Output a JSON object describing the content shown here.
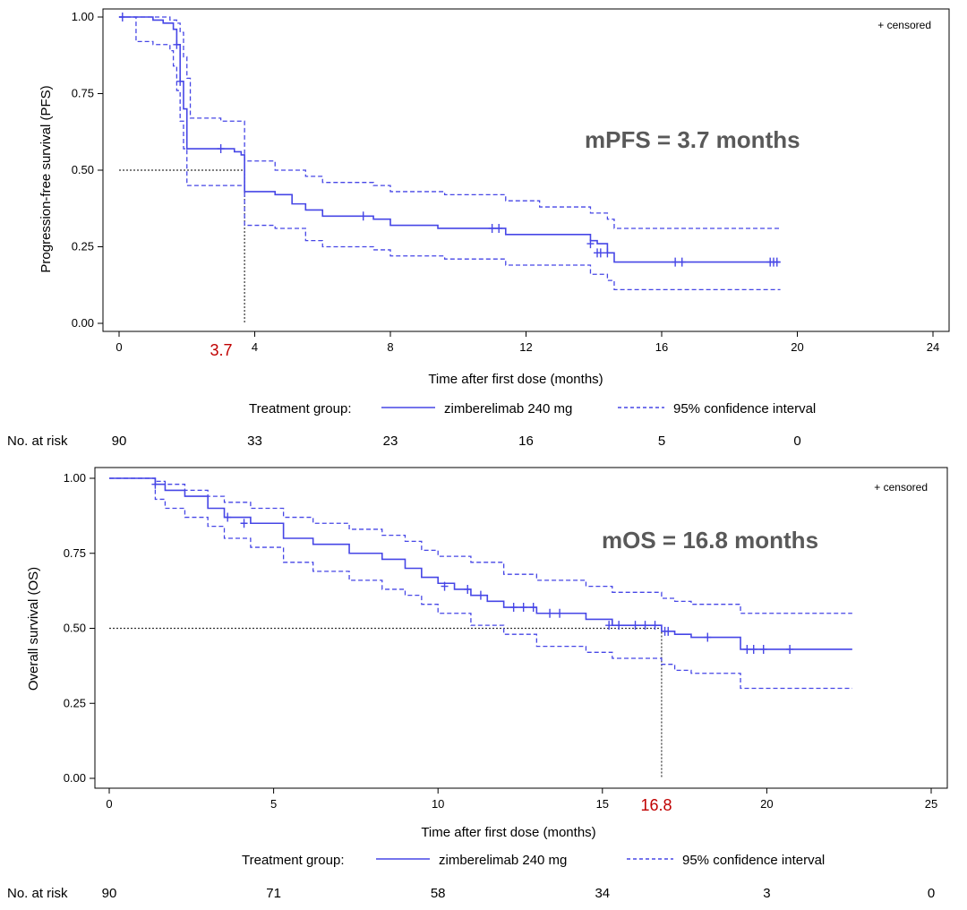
{
  "chart_data": [
    {
      "type": "line",
      "title": "",
      "xlabel": "Time after first dose (months)",
      "ylabel": "Progression-free survival (PFS)",
      "xlim": [
        0,
        24
      ],
      "ylim": [
        0,
        1
      ],
      "xticks": [
        "0",
        "4",
        "8",
        "12",
        "16",
        "20",
        "24"
      ],
      "yticks": [
        "0.00",
        "0.25",
        "0.50",
        "0.75",
        "1.00"
      ],
      "annotation": "mPFS = 3.7 months",
      "median_value": 3.7,
      "median_label": "3.7",
      "censored_note": "+ censored",
      "legend": {
        "prefix": "Treatment group:",
        "solid": "zimberelimab 240 mg",
        "dashed": "95% confidence interval"
      },
      "risk_label": "No. at risk",
      "risk_counts": [
        "90",
        "33",
        "23",
        "16",
        "5",
        "0"
      ],
      "risk_times": [
        0,
        4,
        8,
        12,
        16,
        20
      ],
      "series": [
        {
          "name": "zimberelimab 240 mg",
          "style": "solid",
          "x": [
            0,
            1.0,
            1.3,
            1.6,
            1.7,
            1.8,
            1.9,
            2.0,
            3.0,
            3.4,
            3.6,
            3.7,
            4.6,
            5.1,
            5.5,
            6.0,
            7.1,
            7.5,
            8.0,
            9.4,
            11.4,
            13.9,
            14.1,
            14.4,
            14.6,
            19.5
          ],
          "y": [
            1,
            0.99,
            0.98,
            0.96,
            0.91,
            0.79,
            0.7,
            0.57,
            0.57,
            0.56,
            0.55,
            0.43,
            0.42,
            0.39,
            0.37,
            0.35,
            0.35,
            0.34,
            0.32,
            0.31,
            0.29,
            0.27,
            0.26,
            0.23,
            0.2,
            0.2
          ],
          "censor_x": [
            0.1,
            1.7,
            1.8,
            3.0,
            7.2,
            11.0,
            11.2,
            13.9,
            14.1,
            14.2,
            14.4,
            16.4,
            16.6,
            19.2,
            19.3,
            19.4
          ],
          "censor_y": [
            1,
            0.91,
            0.79,
            0.57,
            0.35,
            0.31,
            0.31,
            0.26,
            0.23,
            0.23,
            0.23,
            0.2,
            0.2,
            0.2,
            0.2,
            0.2
          ]
        },
        {
          "name": "95% confidence interval upper",
          "style": "dashed",
          "x": [
            0,
            1.5,
            1.7,
            1.8,
            1.9,
            2.0,
            2.1,
            3.0,
            3.7,
            4.6,
            5.5,
            6.0,
            7.5,
            8.0,
            9.6,
            11.4,
            12.4,
            13.9,
            14.4,
            14.6,
            19.5
          ],
          "y": [
            1,
            0.99,
            0.98,
            0.95,
            0.87,
            0.8,
            0.67,
            0.66,
            0.53,
            0.5,
            0.48,
            0.46,
            0.45,
            0.43,
            0.42,
            0.4,
            0.38,
            0.36,
            0.34,
            0.31,
            0.31
          ]
        },
        {
          "name": "95% confidence interval lower",
          "style": "dashed",
          "x": [
            0,
            0.5,
            1.0,
            1.5,
            1.6,
            1.7,
            1.8,
            1.9,
            2.0,
            3.0,
            3.7,
            4.6,
            5.5,
            6.0,
            7.5,
            8.0,
            9.6,
            11.4,
            13.9,
            14.4,
            14.6,
            19.5
          ],
          "y": [
            1,
            0.92,
            0.91,
            0.89,
            0.84,
            0.76,
            0.66,
            0.57,
            0.45,
            0.45,
            0.32,
            0.31,
            0.27,
            0.25,
            0.24,
            0.22,
            0.21,
            0.19,
            0.16,
            0.14,
            0.11,
            0.11
          ]
        }
      ]
    },
    {
      "type": "line",
      "title": "",
      "xlabel": "Time after first dose (months)",
      "ylabel": "Overall survival (OS)",
      "xlim": [
        0,
        25
      ],
      "ylim": [
        0,
        1
      ],
      "xticks": [
        "0",
        "5",
        "10",
        "15",
        "20",
        "25"
      ],
      "yticks": [
        "0.00",
        "0.25",
        "0.50",
        "0.75",
        "1.00"
      ],
      "annotation": "mOS = 16.8 months",
      "median_value": 16.8,
      "median_label": "16.8",
      "censored_note": "+ censored",
      "legend": {
        "prefix": "Treatment group:",
        "solid": "zimberelimab 240 mg",
        "dashed": "95% confidence interval"
      },
      "risk_label": "No. at risk",
      "risk_counts": [
        "90",
        "71",
        "58",
        "34",
        "3",
        "0"
      ],
      "risk_times": [
        0,
        5,
        10,
        15,
        20,
        25
      ],
      "series": [
        {
          "name": "zimberelimab 240 mg",
          "style": "solid",
          "x": [
            0,
            1.4,
            1.7,
            2.3,
            3.0,
            3.5,
            4.3,
            5.3,
            6.2,
            7.3,
            8.3,
            9.0,
            9.5,
            10.0,
            10.5,
            11.0,
            11.5,
            12.0,
            13.0,
            14.5,
            15.3,
            16.8,
            17.2,
            17.7,
            19.2,
            22.6
          ],
          "y": [
            1,
            0.98,
            0.96,
            0.94,
            0.9,
            0.87,
            0.85,
            0.8,
            0.78,
            0.75,
            0.73,
            0.7,
            0.67,
            0.65,
            0.63,
            0.61,
            0.59,
            0.57,
            0.55,
            0.53,
            0.51,
            0.49,
            0.48,
            0.47,
            0.43,
            0.43
          ],
          "censor_x": [
            1.4,
            3.6,
            4.1,
            10.2,
            10.9,
            11.3,
            12.3,
            12.6,
            12.9,
            13.4,
            13.7,
            15.2,
            15.5,
            16.0,
            16.3,
            16.6,
            16.9,
            17.0,
            18.2,
            19.4,
            19.6,
            19.9,
            20.7
          ],
          "censor_y": [
            0.98,
            0.87,
            0.85,
            0.64,
            0.63,
            0.61,
            0.57,
            0.57,
            0.57,
            0.55,
            0.55,
            0.51,
            0.51,
            0.51,
            0.51,
            0.51,
            0.49,
            0.49,
            0.47,
            0.43,
            0.43,
            0.43,
            0.43
          ]
        },
        {
          "name": "95% confidence interval upper",
          "style": "dashed",
          "x": [
            0,
            1.4,
            1.7,
            2.3,
            3.0,
            3.5,
            4.3,
            5.3,
            6.2,
            7.3,
            8.3,
            9.0,
            9.5,
            10.0,
            11.0,
            12.0,
            13.0,
            14.5,
            15.3,
            16.8,
            17.2,
            17.7,
            19.2,
            22.6
          ],
          "y": [
            1,
            0.99,
            0.98,
            0.96,
            0.94,
            0.92,
            0.9,
            0.87,
            0.85,
            0.83,
            0.81,
            0.79,
            0.76,
            0.74,
            0.72,
            0.68,
            0.66,
            0.64,
            0.62,
            0.6,
            0.59,
            0.58,
            0.55,
            0.55
          ]
        },
        {
          "name": "95% confidence interval lower",
          "style": "dashed",
          "x": [
            0,
            1.4,
            1.7,
            2.3,
            3.0,
            3.5,
            4.3,
            5.3,
            6.2,
            7.3,
            8.3,
            9.0,
            9.5,
            10.0,
            11.0,
            12.0,
            13.0,
            14.5,
            15.3,
            16.8,
            17.2,
            17.7,
            19.2,
            22.6
          ],
          "y": [
            1,
            0.93,
            0.9,
            0.87,
            0.84,
            0.8,
            0.77,
            0.72,
            0.69,
            0.66,
            0.63,
            0.61,
            0.58,
            0.55,
            0.51,
            0.48,
            0.44,
            0.42,
            0.4,
            0.38,
            0.36,
            0.35,
            0.3,
            0.3
          ]
        }
      ]
    }
  ]
}
